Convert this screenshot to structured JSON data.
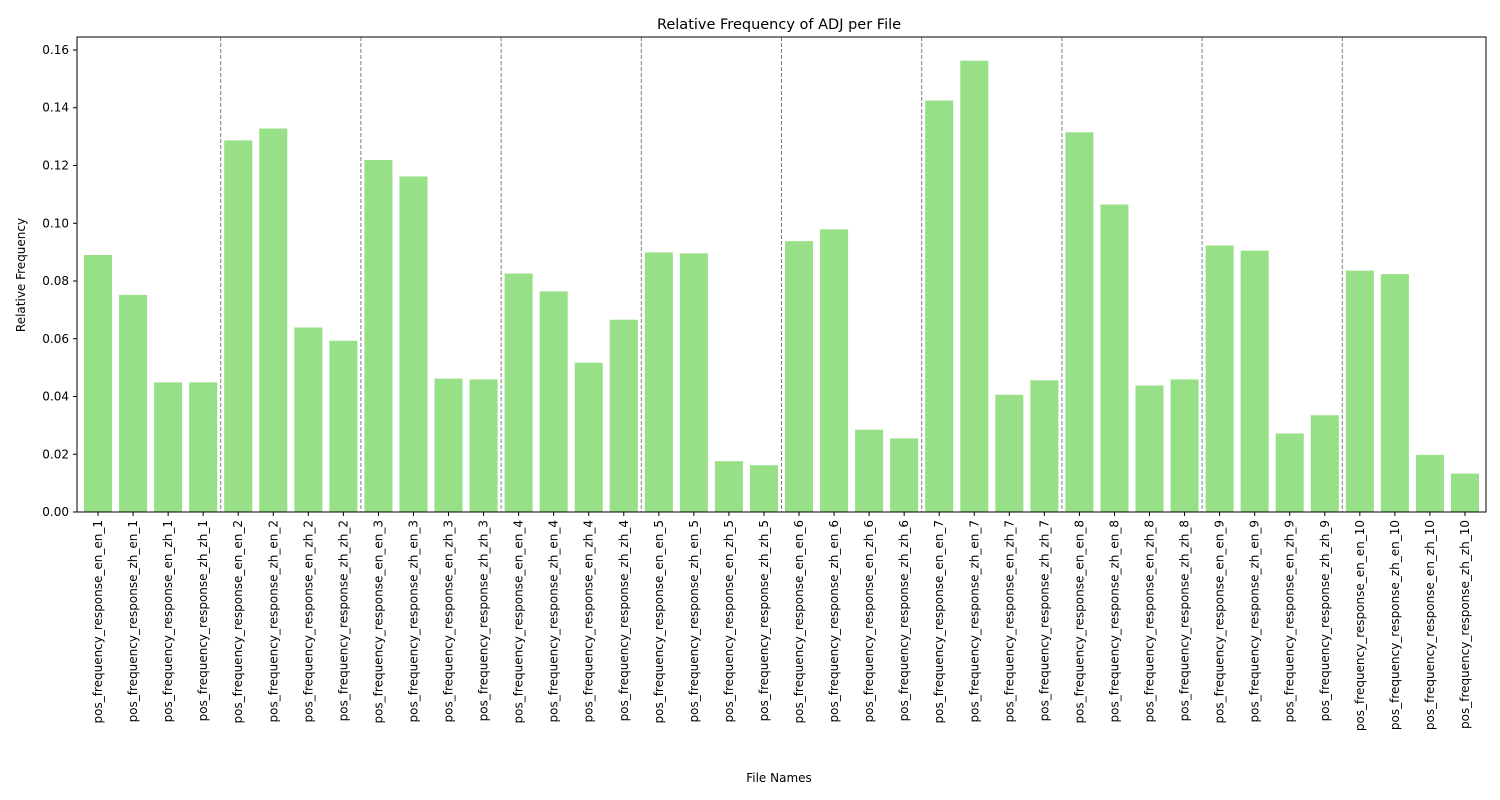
{
  "chart_data": {
    "type": "bar",
    "title": "Relative Frequency of ADJ per File",
    "xlabel": "File Names",
    "ylabel": "Relative Frequency",
    "ylim": [
      0,
      0.1645
    ],
    "yticks": [
      0.0,
      0.02,
      0.04,
      0.06,
      0.08,
      0.1,
      0.12,
      0.14,
      0.16
    ],
    "ytick_labels": [
      "0.00",
      "0.02",
      "0.04",
      "0.06",
      "0.08",
      "0.10",
      "0.12",
      "0.14",
      "0.16"
    ],
    "bar_color": "#98e088",
    "separator_color": "#808080",
    "group_size": 4,
    "grid": false,
    "categories": [
      "pos_frequency_response_en_en_1",
      "pos_frequency_response_zh_en_1",
      "pos_frequency_response_en_zh_1",
      "pos_frequency_response_zh_zh_1",
      "pos_frequency_response_en_en_2",
      "pos_frequency_response_zh_en_2",
      "pos_frequency_response_en_zh_2",
      "pos_frequency_response_zh_zh_2",
      "pos_frequency_response_en_en_3",
      "pos_frequency_response_zh_en_3",
      "pos_frequency_response_en_zh_3",
      "pos_frequency_response_zh_zh_3",
      "pos_frequency_response_en_en_4",
      "pos_frequency_response_zh_en_4",
      "pos_frequency_response_en_zh_4",
      "pos_frequency_response_zh_zh_4",
      "pos_frequency_response_en_en_5",
      "pos_frequency_response_zh_en_5",
      "pos_frequency_response_en_zh_5",
      "pos_frequency_response_zh_zh_5",
      "pos_frequency_response_en_en_6",
      "pos_frequency_response_zh_en_6",
      "pos_frequency_response_en_zh_6",
      "pos_frequency_response_zh_zh_6",
      "pos_frequency_response_en_en_7",
      "pos_frequency_response_zh_en_7",
      "pos_frequency_response_en_zh_7",
      "pos_frequency_response_zh_zh_7",
      "pos_frequency_response_en_en_8",
      "pos_frequency_response_zh_en_8",
      "pos_frequency_response_en_zh_8",
      "pos_frequency_response_zh_zh_8",
      "pos_frequency_response_en_en_9",
      "pos_frequency_response_zh_en_9",
      "pos_frequency_response_en_zh_9",
      "pos_frequency_response_zh_zh_9",
      "pos_frequency_response_en_en_10",
      "pos_frequency_response_zh_en_10",
      "pos_frequency_response_en_zh_10",
      "pos_frequency_response_zh_zh_10"
    ],
    "values": [
      0.089,
      0.0752,
      0.0449,
      0.0449,
      0.1287,
      0.1328,
      0.0639,
      0.0593,
      0.1219,
      0.1162,
      0.0462,
      0.0459,
      0.0826,
      0.0764,
      0.0517,
      0.0666,
      0.0899,
      0.0896,
      0.0176,
      0.0162,
      0.0938,
      0.0979,
      0.0285,
      0.0255,
      0.1425,
      0.1563,
      0.0406,
      0.0456,
      0.1315,
      0.1065,
      0.0438,
      0.0459,
      0.0923,
      0.0905,
      0.0272,
      0.0335,
      0.0836,
      0.0824,
      0.0198,
      0.0133
    ]
  }
}
